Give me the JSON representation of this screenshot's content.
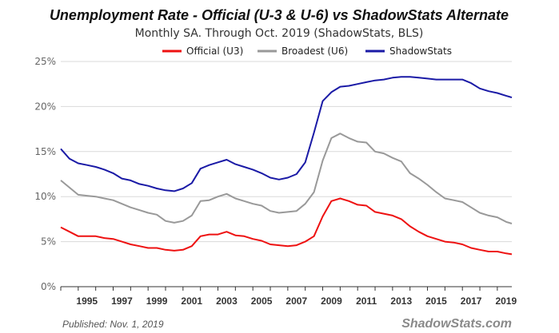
{
  "chart_data": {
    "type": "line",
    "title": "Unemployment Rate - Official (U-3 & U-6) vs ShadowStats Alternate",
    "subtitle": "Monthly SA. Through Oct. 2019  (ShadowStats, BLS)",
    "xlabel": "",
    "ylabel": "",
    "xlim": [
      1994.0,
      2019.83
    ],
    "ylim": [
      0,
      25
    ],
    "yticks": [
      0,
      5,
      10,
      15,
      20,
      25
    ],
    "ytick_labels": [
      "0%",
      "5%",
      "10%",
      "15%",
      "20%",
      "25%"
    ],
    "xtick_labels": [
      "1995",
      "1997",
      "1999",
      "2001",
      "2003",
      "2005",
      "2007",
      "2009",
      "2011",
      "2013",
      "2015",
      "2017",
      "2019"
    ],
    "grid": "horizontal",
    "legend_position": "top-center",
    "x": [
      1994.0,
      1994.5,
      1995.0,
      1995.5,
      1996.0,
      1996.5,
      1997.0,
      1997.5,
      1998.0,
      1998.5,
      1999.0,
      1999.5,
      2000.0,
      2000.5,
      2001.0,
      2001.5,
      2002.0,
      2002.5,
      2003.0,
      2003.5,
      2004.0,
      2004.5,
      2005.0,
      2005.5,
      2006.0,
      2006.5,
      2007.0,
      2007.5,
      2008.0,
      2008.5,
      2009.0,
      2009.5,
      2010.0,
      2010.5,
      2011.0,
      2011.5,
      2012.0,
      2012.5,
      2013.0,
      2013.5,
      2014.0,
      2014.5,
      2015.0,
      2015.5,
      2016.0,
      2016.5,
      2017.0,
      2017.5,
      2018.0,
      2018.5,
      2019.0,
      2019.5,
      2019.83
    ],
    "series": [
      {
        "name": "Official (U3)",
        "color": "#ee1111",
        "values": [
          6.6,
          6.1,
          5.6,
          5.6,
          5.6,
          5.4,
          5.3,
          5.0,
          4.7,
          4.5,
          4.3,
          4.3,
          4.1,
          4.0,
          4.1,
          4.5,
          5.6,
          5.8,
          5.8,
          6.1,
          5.7,
          5.6,
          5.3,
          5.1,
          4.7,
          4.6,
          4.5,
          4.6,
          5.0,
          5.6,
          7.8,
          9.5,
          9.8,
          9.5,
          9.1,
          9.0,
          8.3,
          8.1,
          7.9,
          7.5,
          6.7,
          6.1,
          5.6,
          5.3,
          5.0,
          4.9,
          4.7,
          4.3,
          4.1,
          3.9,
          3.9,
          3.7,
          3.6
        ]
      },
      {
        "name": "Broadest (U6)",
        "color": "#999999",
        "values": [
          11.8,
          11.0,
          10.2,
          10.1,
          10.0,
          9.8,
          9.6,
          9.2,
          8.8,
          8.5,
          8.2,
          8.0,
          7.3,
          7.1,
          7.3,
          7.9,
          9.5,
          9.6,
          10.0,
          10.3,
          9.8,
          9.5,
          9.2,
          9.0,
          8.4,
          8.2,
          8.3,
          8.4,
          9.2,
          10.5,
          14.0,
          16.5,
          17.0,
          16.5,
          16.1,
          16.0,
          15.0,
          14.8,
          14.3,
          13.9,
          12.6,
          12.0,
          11.3,
          10.5,
          9.8,
          9.6,
          9.4,
          8.8,
          8.2,
          7.9,
          7.7,
          7.2,
          7.0
        ]
      },
      {
        "name": "ShadowStats",
        "color": "#1a1aa6",
        "values": [
          15.3,
          14.2,
          13.7,
          13.5,
          13.3,
          13.0,
          12.6,
          12.0,
          11.8,
          11.4,
          11.2,
          10.9,
          10.7,
          10.6,
          10.9,
          11.5,
          13.1,
          13.5,
          13.8,
          14.1,
          13.6,
          13.3,
          13.0,
          12.6,
          12.1,
          11.9,
          12.1,
          12.5,
          13.8,
          17.1,
          20.6,
          21.6,
          22.2,
          22.3,
          22.5,
          22.7,
          22.9,
          23.0,
          23.2,
          23.3,
          23.3,
          23.2,
          23.1,
          23.0,
          23.0,
          23.0,
          23.0,
          22.6,
          22.0,
          21.7,
          21.5,
          21.2,
          21.0
        ]
      }
    ],
    "footer": {
      "published": "Published: Nov. 1, 2019",
      "watermark": "ShadowStats.com"
    }
  }
}
